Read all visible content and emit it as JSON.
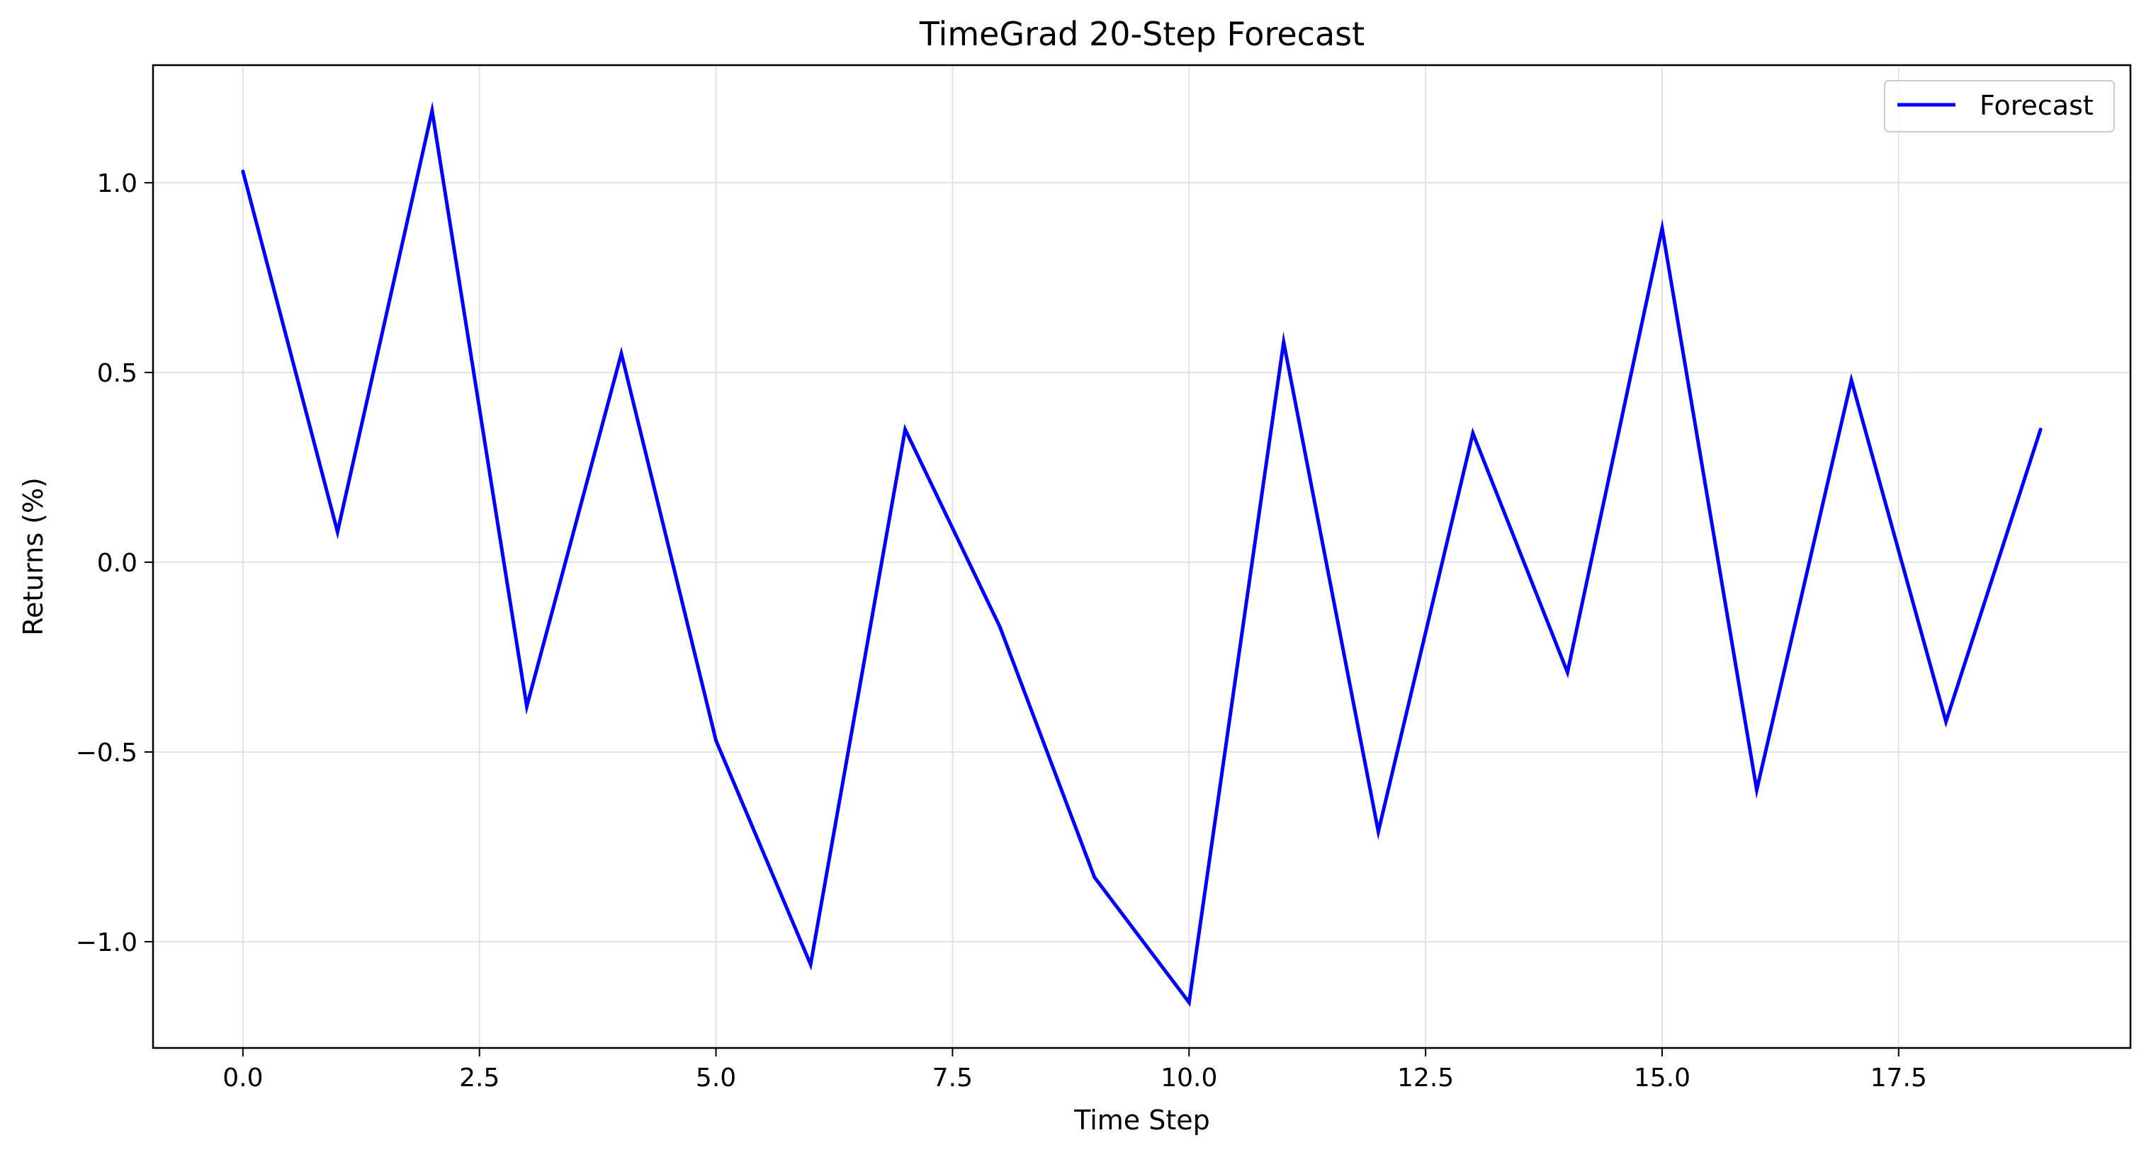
{
  "chart_data": {
    "type": "line",
    "title": "TimeGrad 20-Step Forecast",
    "xlabel": "Time Step",
    "ylabel": "Returns (%)",
    "xlim": [
      -0.95,
      19.95
    ],
    "ylim": [
      -1.28,
      1.31
    ],
    "xticks": [
      0.0,
      2.5,
      5.0,
      7.5,
      10.0,
      12.5,
      15.0,
      17.5
    ],
    "xtick_labels": [
      "0.0",
      "2.5",
      "5.0",
      "7.5",
      "10.0",
      "12.5",
      "15.0",
      "17.5"
    ],
    "yticks": [
      -1.0,
      -0.5,
      0.0,
      0.5,
      1.0
    ],
    "ytick_labels": [
      "−1.0",
      "−0.5",
      "0.0",
      "0.5",
      "1.0"
    ],
    "grid": true,
    "legend_position": "top-right",
    "series": [
      {
        "name": "Forecast",
        "color": "#0000ff",
        "x": [
          0,
          1,
          2,
          3,
          4,
          5,
          6,
          7,
          8,
          9,
          10,
          11,
          12,
          13,
          14,
          15,
          16,
          17,
          18,
          19
        ],
        "values": [
          1.03,
          0.08,
          1.19,
          -0.38,
          0.55,
          -0.47,
          -1.06,
          0.35,
          -0.17,
          -0.83,
          -1.16,
          0.58,
          -0.71,
          0.34,
          -0.29,
          0.88,
          -0.6,
          0.48,
          -0.42,
          0.35
        ]
      }
    ]
  }
}
